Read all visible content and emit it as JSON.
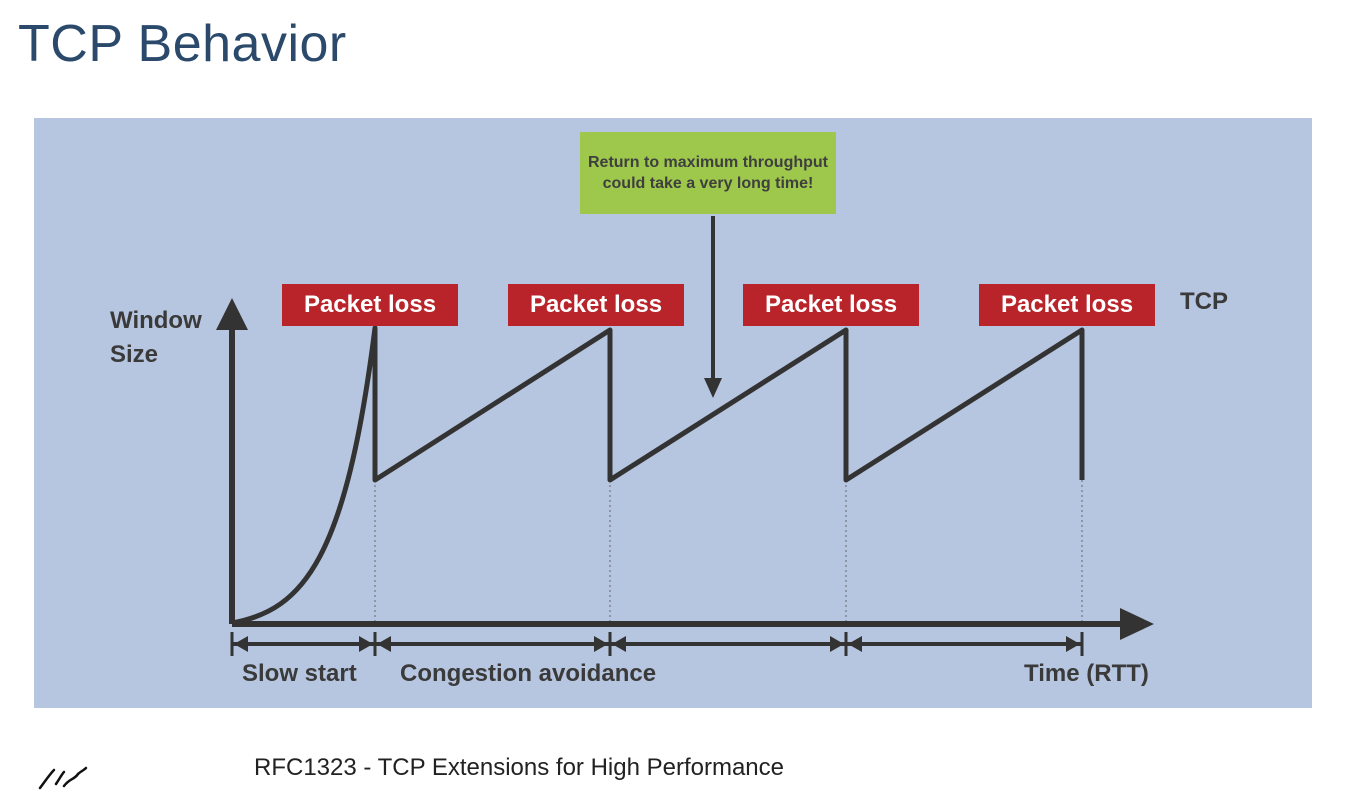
{
  "slide": {
    "title": "TCP Behavior",
    "footnote": "RFC1323 - TCP Extensions for High Performance"
  },
  "diagram": {
    "callout": "Return to maximum throughput could take a very long time!",
    "y_axis_label_line1": "Window",
    "y_axis_label_line2": "Size",
    "series_label": "TCP",
    "loss_labels": [
      "Packet loss",
      "Packet loss",
      "Packet loss",
      "Packet loss"
    ],
    "phase_labels": {
      "slow_start": "Slow start",
      "congestion_avoidance": "Congestion avoidance",
      "time": "Time (RTT)"
    },
    "colors": {
      "panel_background": "#b7c6e0",
      "loss_box": "#b8242a",
      "callout_box": "#9dc84b",
      "line": "#333333",
      "title": "#2b4a6b"
    }
  }
}
